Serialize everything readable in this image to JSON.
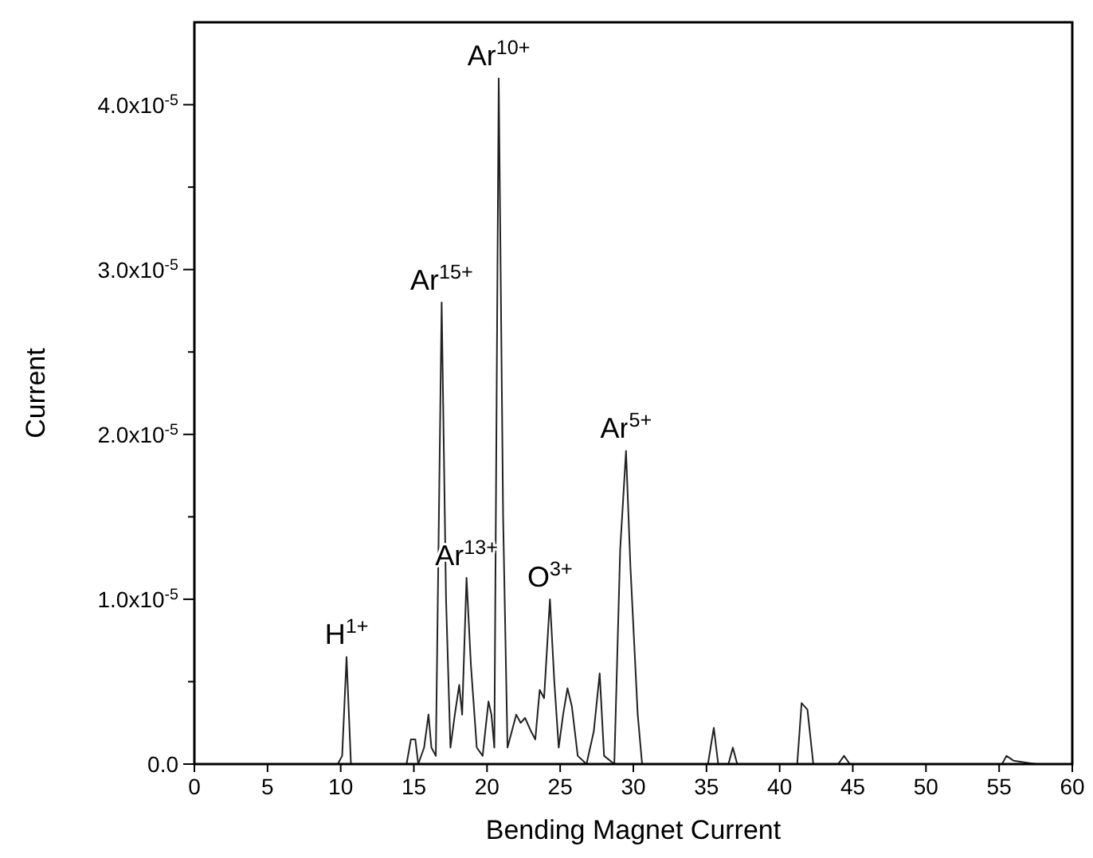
{
  "chart_data": {
    "type": "line",
    "xlabel": "Bending Magnet Current",
    "ylabel": "Current",
    "xlim": [
      0,
      60
    ],
    "xticks": [
      0,
      5,
      10,
      15,
      20,
      25,
      30,
      35,
      40,
      45,
      50,
      55,
      60
    ],
    "ylim": [
      0,
      4.5e-05
    ],
    "yticks": [
      {
        "value": 0,
        "label": "0.0"
      },
      {
        "value": 5e-06,
        "label": null
      },
      {
        "value": 1e-05,
        "label": "1.0x10$^{-5}$"
      },
      {
        "value": 1.5e-05,
        "label": null
      },
      {
        "value": 2e-05,
        "label": "2.0x10$^{-5}$"
      },
      {
        "value": 2.5e-05,
        "label": null
      },
      {
        "value": 3e-05,
        "label": "3.0x10$^{-5}$"
      },
      {
        "value": 3.5e-05,
        "label": null
      },
      {
        "value": 4e-05,
        "label": "4.0x10$^{-5}$"
      }
    ],
    "grid": false,
    "marker": "none",
    "line_style": "solid",
    "series": [
      {
        "color": "#222222",
        "x": [
          0,
          9.8,
          10.1,
          10.4,
          10.7,
          14.5,
          14.8,
          15.1,
          15.3,
          15.7,
          16.0,
          16.2,
          16.5,
          16.9,
          17.2,
          17.5,
          17.8,
          18.1,
          18.3,
          18.6,
          18.9,
          19.3,
          19.7,
          20.1,
          20.3,
          20.5,
          20.8,
          21.1,
          21.4,
          21.7,
          22.0,
          22.3,
          22.6,
          23.0,
          23.3,
          23.6,
          23.9,
          24.3,
          24.6,
          24.9,
          25.2,
          25.5,
          25.8,
          26.2,
          26.8,
          27.3,
          27.7,
          28.0,
          28.7,
          29.1,
          29.3,
          29.5,
          29.8,
          30.3,
          30.6,
          35.1,
          35.5,
          35.8,
          36.5,
          36.8,
          37.1,
          41.2,
          41.5,
          41.9,
          42.3,
          44.0,
          44.4,
          44.8,
          55.2,
          55.5,
          56.0,
          57.5
        ],
        "values": [
          0,
          0,
          5e-07,
          6.5e-06,
          0,
          0,
          1.5e-06,
          1.5e-06,
          0,
          1e-06,
          3e-06,
          1e-06,
          5e-07,
          2.8e-05,
          1e-05,
          1e-06,
          3e-06,
          4.8e-06,
          3e-06,
          1.13e-05,
          6e-06,
          1e-06,
          5e-07,
          3.8e-06,
          3e-06,
          1e-06,
          4.16e-05,
          1.5e-05,
          1e-06,
          2e-06,
          3e-06,
          2.5e-06,
          2.8e-06,
          2e-06,
          1.5e-06,
          4.5e-06,
          4e-06,
          1e-05,
          5e-06,
          1e-06,
          3e-06,
          4.6e-06,
          3.5e-06,
          5e-07,
          0,
          2e-06,
          5.5e-06,
          5e-07,
          0,
          1.3e-05,
          1.6e-05,
          1.9e-05,
          1.2e-05,
          3e-06,
          0,
          0,
          2.2e-06,
          0,
          0,
          1e-06,
          0,
          0,
          3.7e-06,
          3.3e-06,
          0,
          0,
          5e-07,
          0,
          0,
          5e-07,
          2e-07,
          0
        ]
      }
    ],
    "annotations": [
      {
        "text": "H$^{1+}$",
        "x": 10.4,
        "y": 6.5e-06
      },
      {
        "text": "Ar$^{15+}$",
        "x": 16.9,
        "y": 2.8e-05
      },
      {
        "text": "Ar$^{10+}$",
        "x": 20.8,
        "y": 4.16e-05
      },
      {
        "text": "Ar$^{13+}$",
        "x": 18.6,
        "y": 1.13e-05
      },
      {
        "text": "O$^{3+}$",
        "x": 24.3,
        "y": 1e-05
      },
      {
        "text": "Ar$^{5+}$",
        "x": 29.5,
        "y": 1.9e-05
      }
    ]
  }
}
